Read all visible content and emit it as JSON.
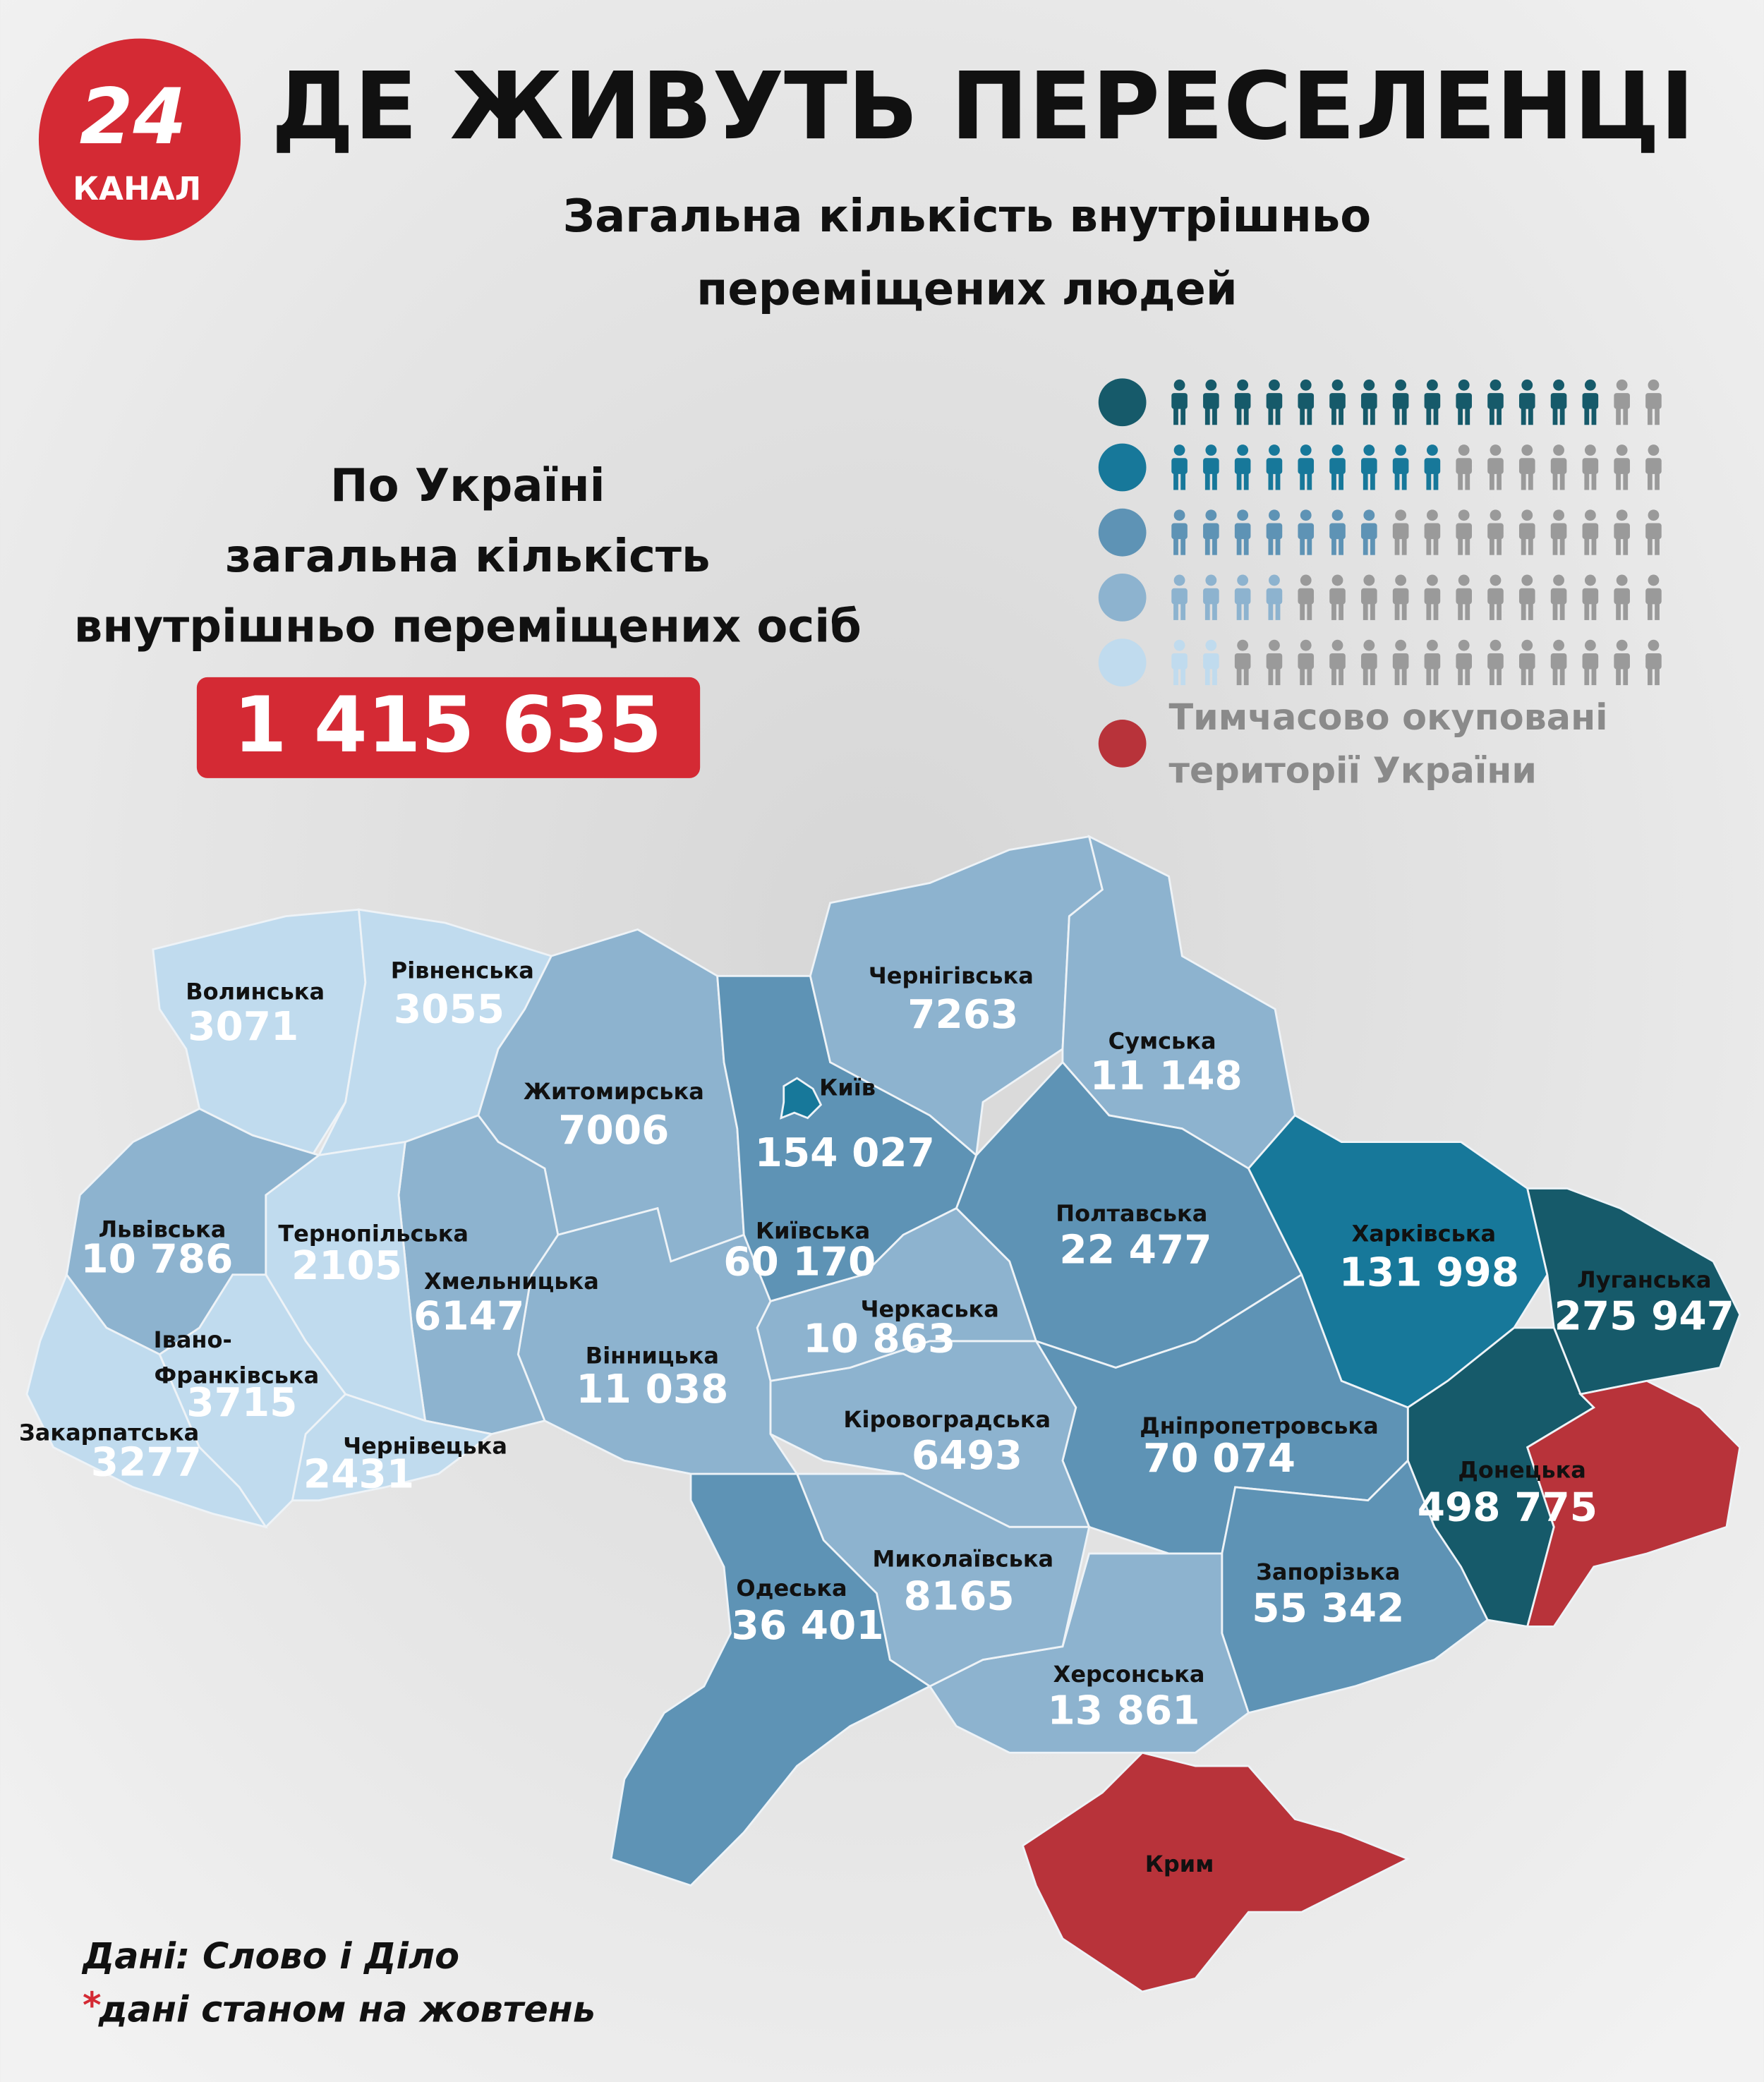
{
  "logo": {
    "number": "24",
    "word": "КАНАЛ"
  },
  "header": {
    "title": "ДЕ ЖИВУТЬ ПЕРЕСЕЛЕНЦІ",
    "subtitle": [
      "Загальна кількість внутрішньо",
      "переміщених людей"
    ]
  },
  "summary": {
    "lines": [
      "По Україні",
      "загальна кількість",
      "внутрішньо переміщених осіб"
    ],
    "total": "1 415 635"
  },
  "legend": {
    "icons_per_row": 16,
    "icon_color": "#9a9a9a",
    "levels": [
      {
        "color": "#165a6a",
        "icons": 14
      },
      {
        "color": "#17789a",
        "icons": 9
      },
      {
        "color": "#5e93b5",
        "icons": 7
      },
      {
        "color": "#8db3cf",
        "icons": 4
      },
      {
        "color": "#c0dbee",
        "icons": 2
      }
    ],
    "occupied": {
      "color": "#b8333a",
      "lines": [
        "Тимчасово окуповані",
        "території України"
      ]
    }
  },
  "regions": [
    {
      "name": "Волинська",
      "value": "3071",
      "color": "#c0dbee"
    },
    {
      "name": "Рівненська",
      "value": "3055",
      "color": "#c0dbee"
    },
    {
      "name": "Житомирська",
      "value": "7006",
      "color": "#8db3cf"
    },
    {
      "name": "Київ",
      "value": "154 027",
      "color": "#17789a"
    },
    {
      "name": "Київська",
      "value": "60 170",
      "color": "#5e93b5"
    },
    {
      "name": "Чернігівська",
      "value": "7263",
      "color": "#8db3cf"
    },
    {
      "name": "Сумська",
      "value": "11 148",
      "color": "#8db3cf"
    },
    {
      "name": "Полтавська",
      "value": "22 477",
      "color": "#5e93b5"
    },
    {
      "name": "Харківська",
      "value": "131 998",
      "color": "#17789a"
    },
    {
      "name": "Луганська",
      "value": "275 947",
      "color": "#165a6a"
    },
    {
      "name": "Донецька",
      "value": "498 775",
      "color": "#165a6a"
    },
    {
      "name": "Дніпропетровська",
      "value": "70 074",
      "color": "#5e93b5"
    },
    {
      "name": "Запорізька",
      "value": "55 342",
      "color": "#5e93b5"
    },
    {
      "name": "Херсонська",
      "value": "13 861",
      "color": "#8db3cf"
    },
    {
      "name": "Кіровоградська",
      "value": "6493",
      "color": "#8db3cf"
    },
    {
      "name": "Миколаївська",
      "value": "8165",
      "color": "#8db3cf"
    },
    {
      "name": "Одеська",
      "value": "36 401",
      "color": "#5e93b5"
    },
    {
      "name": "Черкаська",
      "value": "10 863",
      "color": "#8db3cf"
    },
    {
      "name": "Вінницька",
      "value": "11 038",
      "color": "#8db3cf"
    },
    {
      "name": "Хмельницька",
      "value": "6147",
      "color": "#8db3cf"
    },
    {
      "name": "Тернопільська",
      "value": "2105",
      "color": "#c0dbee"
    },
    {
      "name": "Львівська",
      "value": "10 786",
      "color": "#8db3cf"
    },
    {
      "name_lines": [
        "Івано-",
        "Франківська"
      ],
      "value": "3715",
      "color": "#c0dbee"
    },
    {
      "name": "Закарпатська",
      "value": "3277",
      "color": "#c0dbee"
    },
    {
      "name": "Чернівецька",
      "value": "2431",
      "color": "#c0dbee"
    },
    {
      "name": "Крим",
      "color": "#b8333a"
    }
  ],
  "footer": {
    "source": "Дані: Слово і Діло",
    "mark": "*",
    "note": "дані станом на жовтень"
  }
}
